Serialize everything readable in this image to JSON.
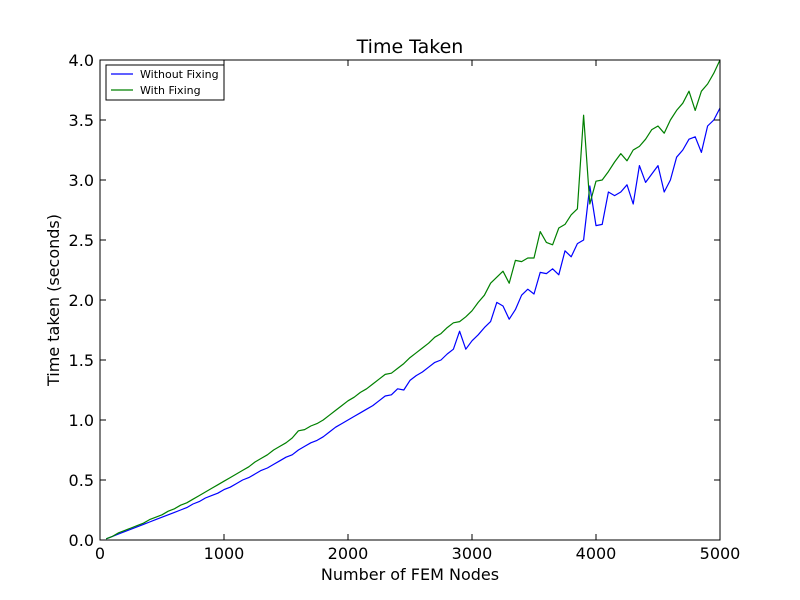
{
  "chart_data": {
    "type": "line",
    "title": "Time Taken",
    "xlabel": "Number of FEM Nodes",
    "ylabel": "Time taken (seconds)",
    "xlim": [
      0,
      5000
    ],
    "ylim": [
      0.0,
      4.0
    ],
    "xticks": [
      0,
      1000,
      2000,
      3000,
      4000,
      5000
    ],
    "yticks": [
      0.0,
      0.5,
      1.0,
      1.5,
      2.0,
      2.5,
      3.0,
      3.5,
      4.0
    ],
    "xtick_labels": [
      "0",
      "1000",
      "2000",
      "3000",
      "4000",
      "5000"
    ],
    "ytick_labels": [
      "0.0",
      "0.5",
      "1.0",
      "1.5",
      "2.0",
      "2.5",
      "3.0",
      "3.5",
      "4.0"
    ],
    "grid": false,
    "legend": "top-left",
    "series": [
      {
        "name": "Without Fixing",
        "color": "#0000ff",
        "points": [
          [
            50,
            0.01
          ],
          [
            100,
            0.03
          ],
          [
            150,
            0.05
          ],
          [
            200,
            0.07
          ],
          [
            250,
            0.09
          ],
          [
            300,
            0.11
          ],
          [
            350,
            0.13
          ],
          [
            400,
            0.15
          ],
          [
            450,
            0.17
          ],
          [
            500,
            0.19
          ],
          [
            550,
            0.21
          ],
          [
            600,
            0.23
          ],
          [
            650,
            0.25
          ],
          [
            700,
            0.27
          ],
          [
            750,
            0.3
          ],
          [
            800,
            0.32
          ],
          [
            850,
            0.35
          ],
          [
            900,
            0.37
          ],
          [
            950,
            0.39
          ],
          [
            1000,
            0.42
          ],
          [
            1050,
            0.44
          ],
          [
            1100,
            0.47
          ],
          [
            1150,
            0.5
          ],
          [
            1200,
            0.52
          ],
          [
            1250,
            0.55
          ],
          [
            1300,
            0.58
          ],
          [
            1350,
            0.6
          ],
          [
            1400,
            0.63
          ],
          [
            1450,
            0.66
          ],
          [
            1500,
            0.69
          ],
          [
            1550,
            0.71
          ],
          [
            1600,
            0.75
          ],
          [
            1650,
            0.78
          ],
          [
            1700,
            0.81
          ],
          [
            1750,
            0.83
          ],
          [
            1800,
            0.86
          ],
          [
            1850,
            0.9
          ],
          [
            1900,
            0.94
          ],
          [
            1950,
            0.97
          ],
          [
            2000,
            1.0
          ],
          [
            2050,
            1.03
          ],
          [
            2100,
            1.06
          ],
          [
            2150,
            1.09
          ],
          [
            2200,
            1.12
          ],
          [
            2250,
            1.16
          ],
          [
            2300,
            1.2
          ],
          [
            2350,
            1.21
          ],
          [
            2400,
            1.26
          ],
          [
            2450,
            1.25
          ],
          [
            2500,
            1.33
          ],
          [
            2550,
            1.37
          ],
          [
            2600,
            1.4
          ],
          [
            2650,
            1.44
          ],
          [
            2700,
            1.48
          ],
          [
            2750,
            1.5
          ],
          [
            2800,
            1.55
          ],
          [
            2850,
            1.59
          ],
          [
            2900,
            1.74
          ],
          [
            2950,
            1.59
          ],
          [
            3000,
            1.66
          ],
          [
            3050,
            1.71
          ],
          [
            3100,
            1.77
          ],
          [
            3150,
            1.82
          ],
          [
            3200,
            1.98
          ],
          [
            3250,
            1.95
          ],
          [
            3300,
            1.84
          ],
          [
            3350,
            1.92
          ],
          [
            3400,
            2.04
          ],
          [
            3450,
            2.09
          ],
          [
            3500,
            2.05
          ],
          [
            3550,
            2.23
          ],
          [
            3600,
            2.22
          ],
          [
            3650,
            2.26
          ],
          [
            3700,
            2.21
          ],
          [
            3750,
            2.41
          ],
          [
            3800,
            2.36
          ],
          [
            3850,
            2.47
          ],
          [
            3900,
            2.5
          ],
          [
            3950,
            2.95
          ],
          [
            4000,
            2.62
          ],
          [
            4050,
            2.63
          ],
          [
            4100,
            2.9
          ],
          [
            4150,
            2.87
          ],
          [
            4200,
            2.9
          ],
          [
            4250,
            2.96
          ],
          [
            4300,
            2.8
          ],
          [
            4350,
            3.12
          ],
          [
            4400,
            2.98
          ],
          [
            4450,
            3.05
          ],
          [
            4500,
            3.12
          ],
          [
            4550,
            2.9
          ],
          [
            4600,
            3.0
          ],
          [
            4650,
            3.19
          ],
          [
            4700,
            3.25
          ],
          [
            4750,
            3.34
          ],
          [
            4800,
            3.36
          ],
          [
            4850,
            3.23
          ],
          [
            4900,
            3.45
          ],
          [
            4950,
            3.5
          ],
          [
            5000,
            3.6
          ]
        ]
      },
      {
        "name": "With Fixing",
        "color": "#008000",
        "points": [
          [
            50,
            0.01
          ],
          [
            100,
            0.03
          ],
          [
            150,
            0.06
          ],
          [
            200,
            0.08
          ],
          [
            250,
            0.1
          ],
          [
            300,
            0.12
          ],
          [
            350,
            0.14
          ],
          [
            400,
            0.17
          ],
          [
            450,
            0.19
          ],
          [
            500,
            0.21
          ],
          [
            550,
            0.24
          ],
          [
            600,
            0.26
          ],
          [
            650,
            0.29
          ],
          [
            700,
            0.31
          ],
          [
            750,
            0.34
          ],
          [
            800,
            0.37
          ],
          [
            850,
            0.4
          ],
          [
            900,
            0.43
          ],
          [
            950,
            0.46
          ],
          [
            1000,
            0.49
          ],
          [
            1050,
            0.52
          ],
          [
            1100,
            0.55
          ],
          [
            1150,
            0.58
          ],
          [
            1200,
            0.61
          ],
          [
            1250,
            0.65
          ],
          [
            1300,
            0.68
          ],
          [
            1350,
            0.71
          ],
          [
            1400,
            0.75
          ],
          [
            1450,
            0.78
          ],
          [
            1500,
            0.81
          ],
          [
            1550,
            0.85
          ],
          [
            1600,
            0.91
          ],
          [
            1650,
            0.92
          ],
          [
            1700,
            0.95
          ],
          [
            1750,
            0.97
          ],
          [
            1800,
            1.0
          ],
          [
            1850,
            1.04
          ],
          [
            1900,
            1.08
          ],
          [
            1950,
            1.12
          ],
          [
            2000,
            1.16
          ],
          [
            2050,
            1.19
          ],
          [
            2100,
            1.23
          ],
          [
            2150,
            1.26
          ],
          [
            2200,
            1.3
          ],
          [
            2250,
            1.34
          ],
          [
            2300,
            1.38
          ],
          [
            2350,
            1.39
          ],
          [
            2400,
            1.43
          ],
          [
            2450,
            1.47
          ],
          [
            2500,
            1.52
          ],
          [
            2550,
            1.56
          ],
          [
            2600,
            1.6
          ],
          [
            2650,
            1.64
          ],
          [
            2700,
            1.69
          ],
          [
            2750,
            1.72
          ],
          [
            2800,
            1.77
          ],
          [
            2850,
            1.81
          ],
          [
            2900,
            1.82
          ],
          [
            2950,
            1.86
          ],
          [
            3000,
            1.91
          ],
          [
            3050,
            1.98
          ],
          [
            3100,
            2.04
          ],
          [
            3150,
            2.14
          ],
          [
            3200,
            2.19
          ],
          [
            3250,
            2.24
          ],
          [
            3300,
            2.14
          ],
          [
            3350,
            2.33
          ],
          [
            3400,
            2.32
          ],
          [
            3450,
            2.35
          ],
          [
            3500,
            2.35
          ],
          [
            3550,
            2.57
          ],
          [
            3600,
            2.48
          ],
          [
            3650,
            2.46
          ],
          [
            3700,
            2.6
          ],
          [
            3750,
            2.63
          ],
          [
            3800,
            2.71
          ],
          [
            3850,
            2.76
          ],
          [
            3900,
            3.54
          ],
          [
            3950,
            2.8
          ],
          [
            4000,
            2.99
          ],
          [
            4050,
            3.0
          ],
          [
            4100,
            3.07
          ],
          [
            4150,
            3.15
          ],
          [
            4200,
            3.22
          ],
          [
            4250,
            3.16
          ],
          [
            4300,
            3.25
          ],
          [
            4350,
            3.28
          ],
          [
            4400,
            3.34
          ],
          [
            4450,
            3.42
          ],
          [
            4500,
            3.45
          ],
          [
            4550,
            3.39
          ],
          [
            4600,
            3.5
          ],
          [
            4650,
            3.58
          ],
          [
            4700,
            3.64
          ],
          [
            4750,
            3.74
          ],
          [
            4800,
            3.58
          ],
          [
            4850,
            3.74
          ],
          [
            4900,
            3.8
          ],
          [
            4950,
            3.89
          ],
          [
            5000,
            4.0
          ]
        ]
      }
    ]
  }
}
